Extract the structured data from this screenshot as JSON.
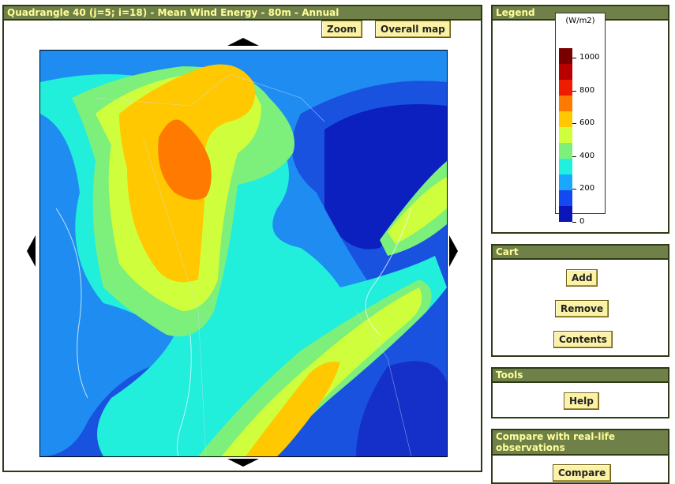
{
  "main": {
    "title": "Quadrangle 40 (j=5; i=18) - Mean Wind Energy - 80m - Annual",
    "zoom_label": "Zoom",
    "overall_map_label": "Overall map"
  },
  "legend": {
    "title": "Legend",
    "unit": "(W/m2)",
    "ticks": [
      "1000",
      "800",
      "600",
      "400",
      "200",
      "0"
    ],
    "colors": [
      "#7a0000",
      "#b80000",
      "#ee1c00",
      "#ff7a00",
      "#ffc800",
      "#cfff3c",
      "#7df07a",
      "#1ff0e0",
      "#1aa7ff",
      "#1249f0",
      "#0a16b8"
    ]
  },
  "cart": {
    "title": "Cart",
    "add_label": "Add",
    "remove_label": "Remove",
    "contents_label": "Contents"
  },
  "tools": {
    "title": "Tools",
    "help_label": "Help"
  },
  "compare": {
    "title": "Compare with real-life observations",
    "button_label": "Compare"
  }
}
